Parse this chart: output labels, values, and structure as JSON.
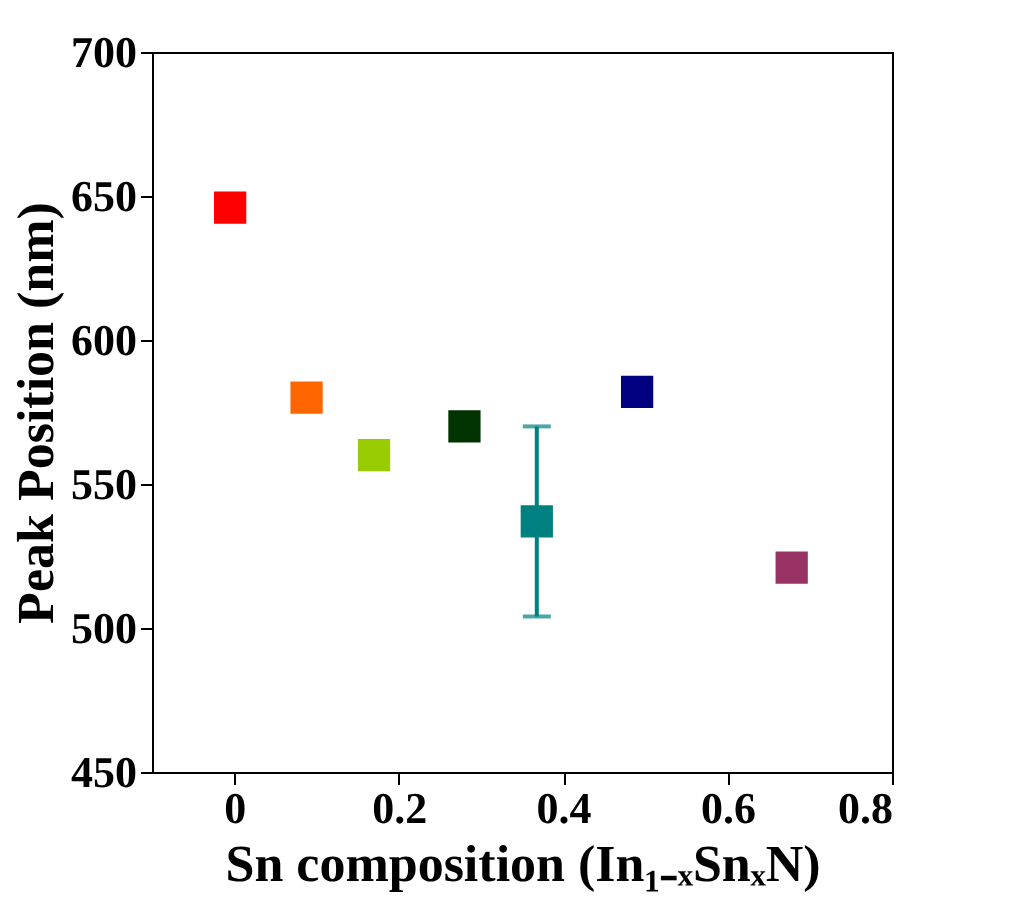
{
  "chart_data": {
    "type": "scatter",
    "xlabel": "Sn composition (In₁₋ₓSnₓN)",
    "ylabel": "Peak Position (nm)",
    "x": [
      -0.005,
      0.088,
      0.17,
      0.28,
      0.368,
      0.49,
      0.678
    ],
    "values": [
      646,
      580,
      560,
      570,
      537,
      582,
      521
    ],
    "colors": [
      "#ff0000",
      "#ff6600",
      "#99cc00",
      "#003300",
      "#008080",
      "#000080",
      "#993366"
    ],
    "errors": [
      null,
      null,
      null,
      null,
      33,
      null,
      null
    ],
    "xlim": [
      -0.1,
      0.8
    ],
    "xticks": [
      0,
      0.2,
      0.4,
      0.6,
      0.8
    ],
    "ylim": [
      450,
      700
    ],
    "yticks": [
      450,
      500,
      550,
      600,
      650,
      700
    ],
    "marker": "square",
    "grid": false,
    "legend": false
  }
}
